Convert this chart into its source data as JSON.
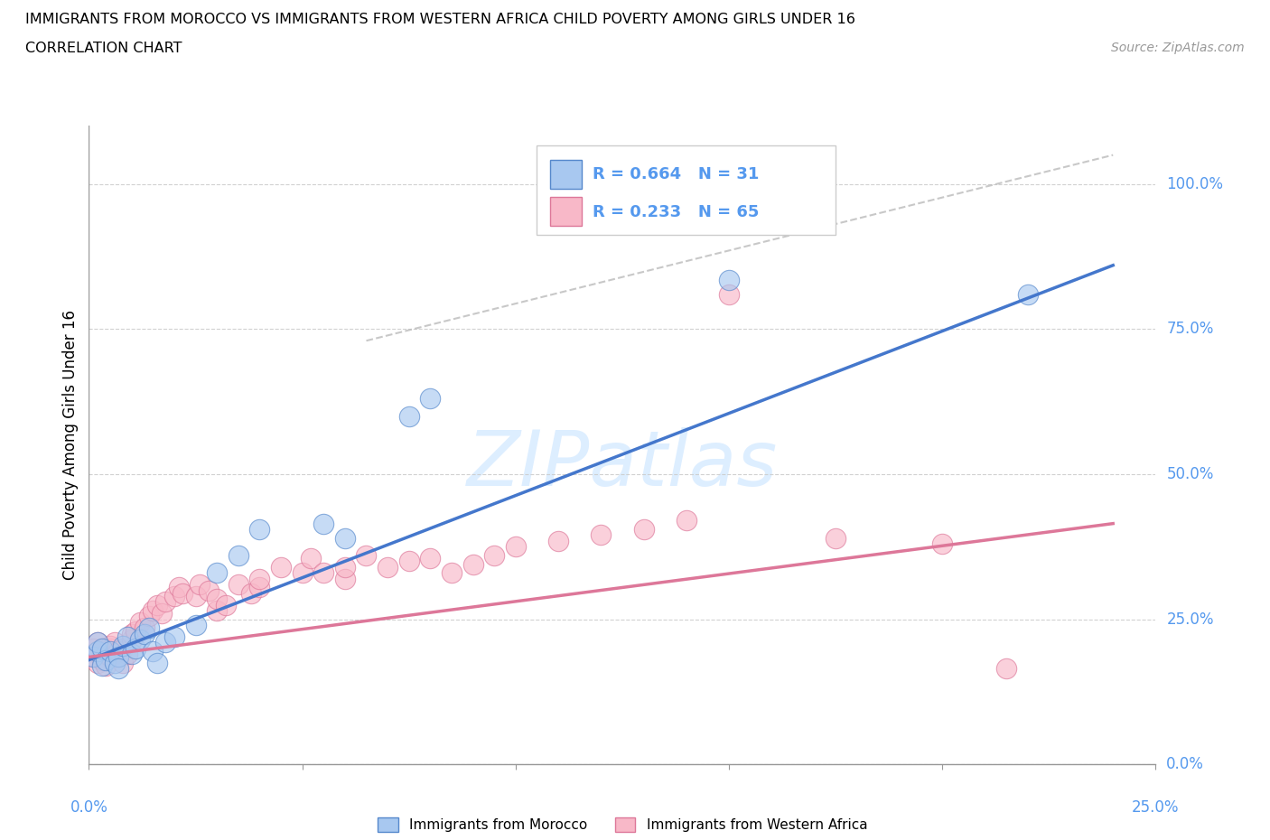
{
  "title": "IMMIGRANTS FROM MOROCCO VS IMMIGRANTS FROM WESTERN AFRICA CHILD POVERTY AMONG GIRLS UNDER 16",
  "subtitle": "CORRELATION CHART",
  "source": "Source: ZipAtlas.com",
  "ylabel": "Child Poverty Among Girls Under 16",
  "color_morocco": "#a8c8f0",
  "color_morocco_edge": "#5588cc",
  "color_morocco_line": "#4477cc",
  "color_wa": "#f8b8c8",
  "color_wa_edge": "#dd7799",
  "color_wa_line": "#dd7799",
  "color_diagonal": "#bbbbbb",
  "color_grid": "#cccccc",
  "color_tick": "#5599ee",
  "watermark_color": "#ddeeff",
  "legend_r1": "R = 0.664",
  "legend_n1": "N = 31",
  "legend_r2": "R = 0.233",
  "legend_n2": "N = 65",
  "morocco_x": [
    0.001,
    0.002,
    0.002,
    0.003,
    0.003,
    0.004,
    0.005,
    0.006,
    0.007,
    0.007,
    0.008,
    0.009,
    0.01,
    0.011,
    0.012,
    0.013,
    0.014,
    0.015,
    0.016,
    0.018,
    0.02,
    0.025,
    0.03,
    0.035,
    0.04,
    0.055,
    0.06,
    0.075,
    0.08,
    0.15,
    0.22
  ],
  "morocco_y": [
    0.185,
    0.195,
    0.21,
    0.17,
    0.2,
    0.18,
    0.195,
    0.175,
    0.185,
    0.165,
    0.205,
    0.22,
    0.19,
    0.2,
    0.215,
    0.225,
    0.235,
    0.195,
    0.175,
    0.21,
    0.22,
    0.24,
    0.33,
    0.36,
    0.405,
    0.415,
    0.39,
    0.6,
    0.63,
    0.835,
    0.81
  ],
  "wa_x": [
    0.001,
    0.001,
    0.002,
    0.002,
    0.002,
    0.003,
    0.003,
    0.003,
    0.004,
    0.004,
    0.005,
    0.005,
    0.005,
    0.006,
    0.006,
    0.007,
    0.007,
    0.008,
    0.008,
    0.009,
    0.01,
    0.01,
    0.011,
    0.012,
    0.013,
    0.014,
    0.015,
    0.016,
    0.017,
    0.018,
    0.02,
    0.021,
    0.022,
    0.025,
    0.026,
    0.028,
    0.03,
    0.03,
    0.032,
    0.035,
    0.038,
    0.04,
    0.04,
    0.045,
    0.05,
    0.052,
    0.055,
    0.06,
    0.06,
    0.065,
    0.07,
    0.075,
    0.08,
    0.085,
    0.09,
    0.095,
    0.1,
    0.11,
    0.12,
    0.13,
    0.14,
    0.15,
    0.175,
    0.2,
    0.215
  ],
  "wa_y": [
    0.185,
    0.2,
    0.175,
    0.195,
    0.21,
    0.18,
    0.195,
    0.2,
    0.19,
    0.17,
    0.185,
    0.2,
    0.205,
    0.19,
    0.21,
    0.185,
    0.195,
    0.175,
    0.2,
    0.19,
    0.215,
    0.225,
    0.23,
    0.245,
    0.235,
    0.255,
    0.265,
    0.275,
    0.26,
    0.28,
    0.29,
    0.305,
    0.295,
    0.29,
    0.31,
    0.3,
    0.265,
    0.285,
    0.275,
    0.31,
    0.295,
    0.305,
    0.32,
    0.34,
    0.33,
    0.355,
    0.33,
    0.32,
    0.34,
    0.36,
    0.34,
    0.35,
    0.355,
    0.33,
    0.345,
    0.36,
    0.375,
    0.385,
    0.395,
    0.405,
    0.42,
    0.81,
    0.39,
    0.38,
    0.165
  ],
  "morocco_trend": [
    0.0,
    0.24,
    0.18,
    0.86
  ],
  "wa_trend": [
    0.0,
    0.24,
    0.185,
    0.415
  ],
  "diag_line": [
    0.065,
    0.24,
    0.73,
    1.05
  ],
  "xlim": [
    0.0,
    0.25
  ],
  "ylim": [
    0.0,
    1.1
  ],
  "ytick_vals": [
    0.0,
    0.25,
    0.5,
    0.75,
    1.0
  ],
  "ytick_labels_right": [
    "0.0%",
    "25.0%",
    "50.0%",
    "75.0%",
    "100.0%"
  ],
  "xtick_vals": [
    0.0,
    0.05,
    0.1,
    0.15,
    0.2,
    0.25
  ],
  "xtick_label_left": "0.0%",
  "xtick_label_right": "25.0%"
}
